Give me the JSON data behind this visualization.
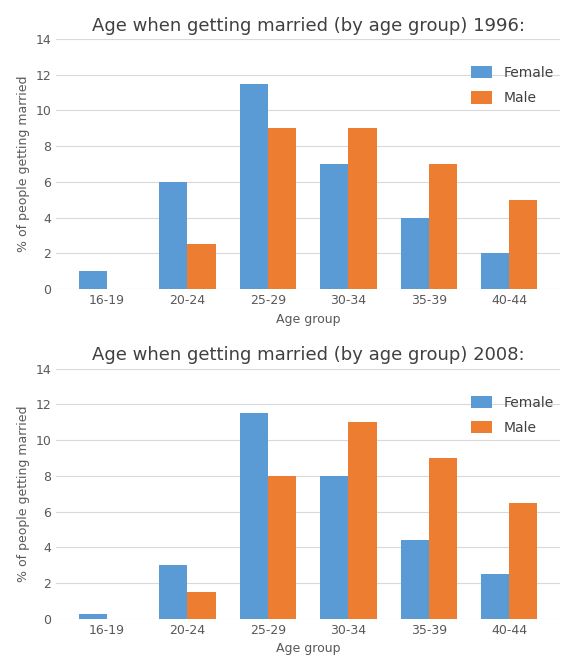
{
  "categories": [
    "16-19",
    "20-24",
    "25-29",
    "30-34",
    "35-39",
    "40-44"
  ],
  "chart1": {
    "title": "Age when getting married (by age group) 1996:",
    "female": [
      1.0,
      6.0,
      11.5,
      7.0,
      4.0,
      2.0
    ],
    "male": [
      0.0,
      2.5,
      9.0,
      9.0,
      7.0,
      5.0
    ]
  },
  "chart2": {
    "title": "Age when getting married (by age group) 2008:",
    "female": [
      0.25,
      3.0,
      11.5,
      8.0,
      4.4,
      2.5
    ],
    "male": [
      0.0,
      1.5,
      8.0,
      11.0,
      9.0,
      6.5
    ]
  },
  "female_color": "#5B9BD5",
  "male_color": "#ED7D31",
  "ylabel": "% of people getting married",
  "xlabel": "Age group",
  "ylim": [
    0,
    14
  ],
  "yticks": [
    0,
    2,
    4,
    6,
    8,
    10,
    12,
    14
  ],
  "legend_labels": [
    "Female",
    "Male"
  ],
  "bar_width": 0.35,
  "title_fontsize": 13,
  "axis_fontsize": 9,
  "tick_fontsize": 9,
  "legend_fontsize": 10
}
